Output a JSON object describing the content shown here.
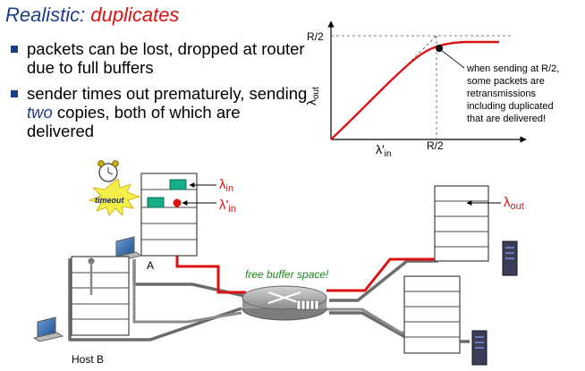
{
  "title": {
    "prefix": "Realistic: ",
    "highlight": "duplicates"
  },
  "bullets": [
    {
      "text": "packets can be lost, dropped at router due  to full buffers"
    },
    {
      "before": "sender times out prematurely, sending ",
      "emphasis": "two",
      "after": " copies, both of which are delivered"
    }
  ],
  "graph": {
    "y_tick": "R/2",
    "x_tick": "R/2",
    "y_axis_label": "λ",
    "y_axis_sub": "out",
    "x_axis_label": "λ′",
    "x_axis_sub": "in",
    "annotation": [
      "when sending at R/2,",
      "some packets are",
      "retransmissions",
      "including duplicated",
      "that are delivered!"
    ]
  },
  "diagram": {
    "timeout_label": "timeout",
    "lambda_in": "λ",
    "lambda_in_sub": "in",
    "lambda_in_prime": "λ'",
    "lambda_in_prime_sub": "in",
    "lambda_out": "λ",
    "lambda_out_sub": "out",
    "host_a": "A",
    "host_b": "Host B",
    "buffer_label": "free buffer space!"
  },
  "colors": {
    "title": "#1f3d8a",
    "accent": "#dd1111",
    "packet": "#15b08a",
    "router": "#8c8c8c"
  }
}
